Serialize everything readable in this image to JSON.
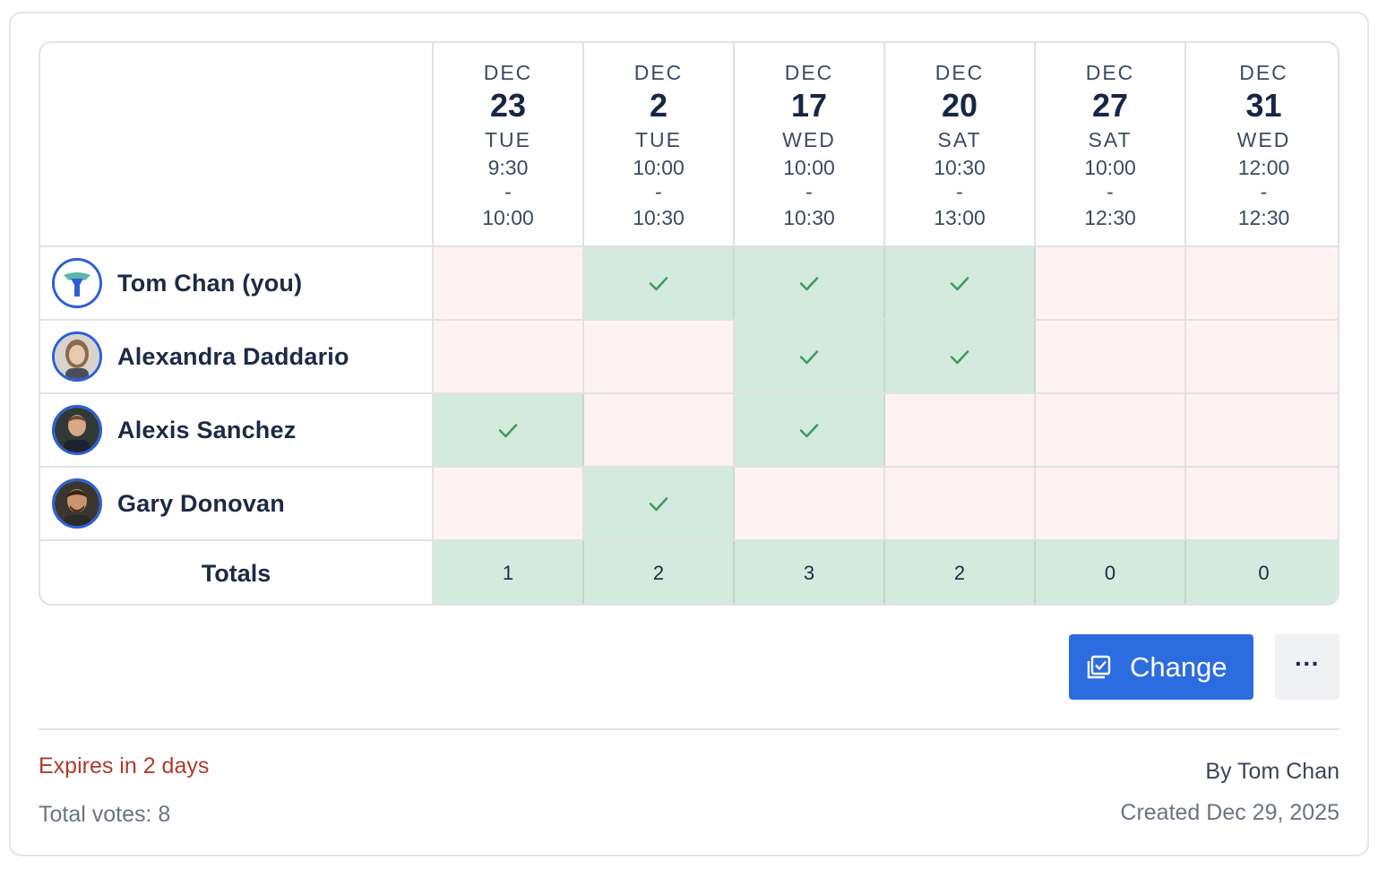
{
  "columns": [
    {
      "month": "DEC",
      "day": "23",
      "weekday": "TUE",
      "start": "9:30",
      "sep": "-",
      "end": "10:00"
    },
    {
      "month": "DEC",
      "day": "2",
      "weekday": "TUE",
      "start": "10:00",
      "sep": "-",
      "end": "10:30"
    },
    {
      "month": "DEC",
      "day": "17",
      "weekday": "WED",
      "start": "10:00",
      "sep": "-",
      "end": "10:30"
    },
    {
      "month": "DEC",
      "day": "20",
      "weekday": "SAT",
      "start": "10:30",
      "sep": "-",
      "end": "13:00"
    },
    {
      "month": "DEC",
      "day": "27",
      "weekday": "SAT",
      "start": "10:00",
      "sep": "-",
      "end": "12:30"
    },
    {
      "month": "DEC",
      "day": "31",
      "weekday": "WED",
      "start": "12:00",
      "sep": "-",
      "end": "12:30"
    }
  ],
  "participants": [
    {
      "name": "Tom Chan (you)",
      "avatar": "logo-avatar",
      "votes": [
        false,
        true,
        true,
        true,
        false,
        false
      ]
    },
    {
      "name": "Alexandra Daddario",
      "avatar": "photo-avatar",
      "votes": [
        false,
        false,
        true,
        true,
        false,
        false
      ]
    },
    {
      "name": "Alexis Sanchez",
      "avatar": "photo-avatar",
      "votes": [
        true,
        false,
        true,
        false,
        false,
        false
      ]
    },
    {
      "name": "Gary Donovan",
      "avatar": "photo-avatar",
      "votes": [
        false,
        true,
        false,
        false,
        false,
        false
      ]
    }
  ],
  "totals": {
    "label": "Totals",
    "values": [
      "1",
      "2",
      "3",
      "2",
      "0",
      "0"
    ]
  },
  "actions": {
    "change_label": "Change",
    "change_icon": "edit-checkbox-icon",
    "more_label": "···",
    "more_icon": "more-icon"
  },
  "footer": {
    "expires": "Expires in 2 days",
    "total_votes": "Total votes: 8",
    "author": "By Tom Chan",
    "created": "Created Dec 29, 2025"
  },
  "colors": {
    "accent": "#2b6de0",
    "yes": "#d5eade",
    "no": "#fff2f2",
    "check": "#3f9a5e",
    "expires": "#b2392a"
  }
}
